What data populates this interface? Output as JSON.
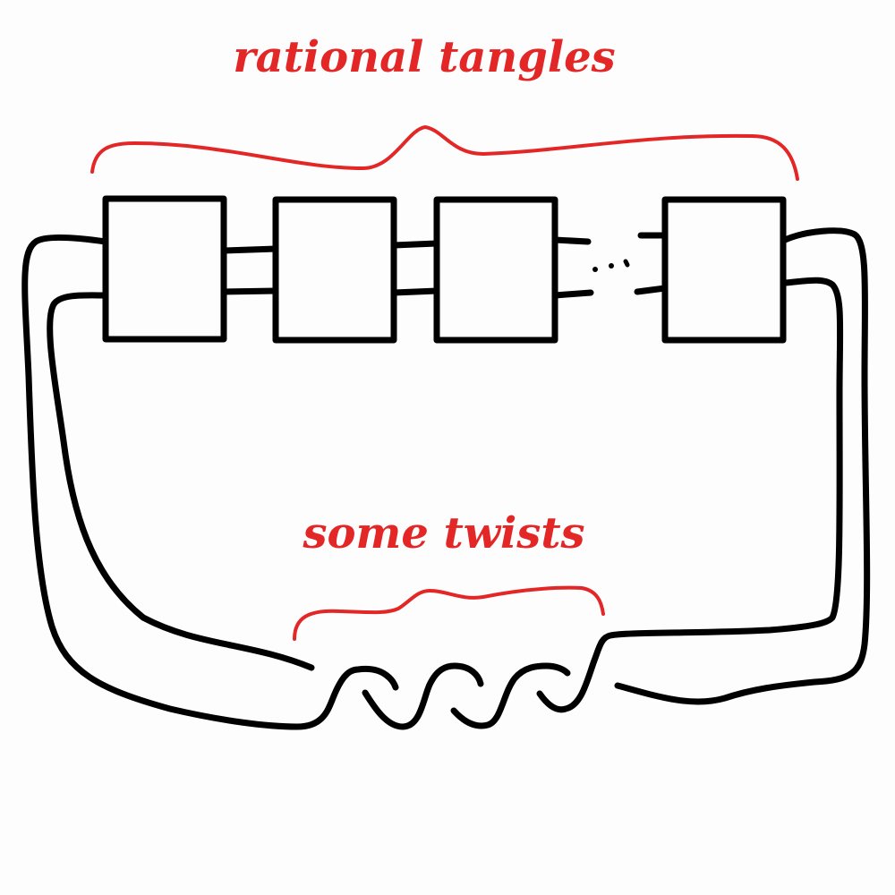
{
  "labels": {
    "rational_tangles": "rational tangles",
    "some_twists": "some twists"
  },
  "colors": {
    "annotation": "#e32626",
    "strand": "#000000",
    "background": "#fdfdfd"
  },
  "diagram": {
    "tangle_boxes": [
      {
        "id": "tangle-1"
      },
      {
        "id": "tangle-2"
      },
      {
        "id": "tangle-3"
      },
      {
        "id": "tangle-n"
      }
    ],
    "ellipsis": "⋯",
    "twist_count": 3
  }
}
